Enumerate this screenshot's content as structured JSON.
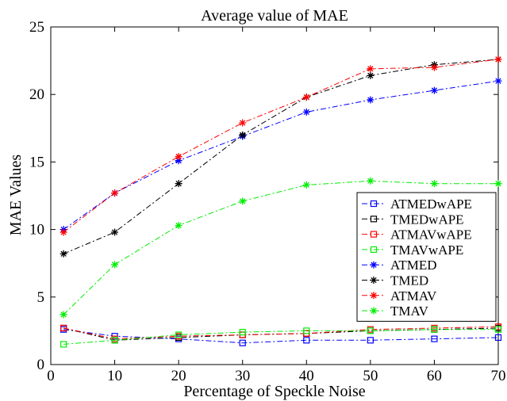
{
  "chart_data": {
    "type": "line",
    "title": "Average value of MAE",
    "xlabel": "Percentage of Speckle Noise",
    "ylabel": "MAE Values",
    "xlim": [
      0,
      70
    ],
    "ylim": [
      0,
      25
    ],
    "xticks": [
      0,
      10,
      20,
      30,
      40,
      50,
      60,
      70
    ],
    "yticks": [
      0,
      5,
      10,
      15,
      20,
      25
    ],
    "x": [
      2,
      10,
      20,
      30,
      40,
      50,
      60,
      70
    ],
    "grid": false,
    "legend_position": "center-right",
    "series": [
      {
        "name": "ATMEDwAPE",
        "color": "#0000ff",
        "marker": "square",
        "values": [
          2.6,
          2.1,
          1.9,
          1.6,
          1.8,
          1.8,
          1.9,
          2.0
        ]
      },
      {
        "name": "TMEDwAPE",
        "color": "#000000",
        "marker": "square",
        "values": [
          2.7,
          1.8,
          2.0,
          2.2,
          2.3,
          2.5,
          2.6,
          2.7
        ]
      },
      {
        "name": "ATMAVwAPE",
        "color": "#ff0000",
        "marker": "square",
        "values": [
          2.7,
          1.9,
          2.1,
          2.2,
          2.3,
          2.6,
          2.7,
          2.8
        ]
      },
      {
        "name": "TMAVwAPE",
        "color": "#00ee00",
        "marker": "square",
        "values": [
          1.5,
          1.8,
          2.2,
          2.4,
          2.5,
          2.5,
          2.6,
          2.6
        ]
      },
      {
        "name": "ATMED",
        "color": "#0000ff",
        "marker": "star",
        "values": [
          10.0,
          12.7,
          15.1,
          16.9,
          18.7,
          19.6,
          20.3,
          21.0
        ]
      },
      {
        "name": "TMED",
        "color": "#000000",
        "marker": "star",
        "values": [
          8.2,
          9.8,
          13.4,
          17.0,
          19.8,
          21.4,
          22.2,
          22.6
        ]
      },
      {
        "name": "ATMAV",
        "color": "#ff0000",
        "marker": "star",
        "values": [
          9.8,
          12.7,
          15.4,
          17.9,
          19.8,
          21.9,
          22.0,
          22.6
        ]
      },
      {
        "name": "TMAV",
        "color": "#00ee00",
        "marker": "star",
        "values": [
          3.7,
          7.4,
          10.3,
          12.1,
          13.3,
          13.6,
          13.4,
          13.4
        ]
      }
    ]
  }
}
